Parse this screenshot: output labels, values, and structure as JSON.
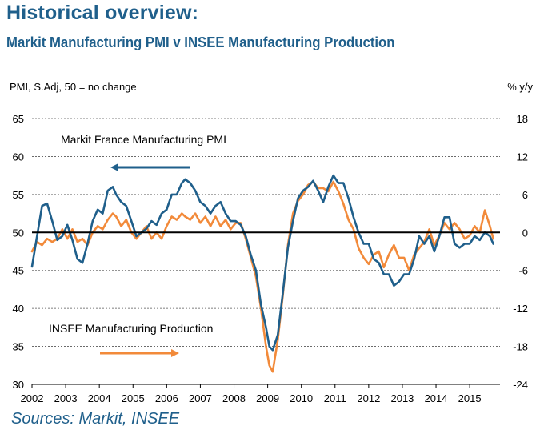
{
  "header": {
    "title": "Historical overview:",
    "subtitle": "Markit Manufacturing PMI v INSEE Manufacturing Production"
  },
  "footer": {
    "source": "Sources: Markit, INSEE"
  },
  "colors": {
    "pmi": "#1f5f8b",
    "insee": "#f28a3a",
    "title": "#1f5f8b",
    "grid": "#555555",
    "axis": "#000000"
  },
  "chart_data": {
    "type": "line",
    "left_axis_label": "PMI, S.Adj, 50 = no change",
    "right_axis_label": "% y/y",
    "left_ylim": [
      30,
      65
    ],
    "left_ticks": [
      "30",
      "35",
      "40",
      "45",
      "50",
      "55",
      "60",
      "65"
    ],
    "right_ylim": [
      -24,
      18
    ],
    "right_ticks": [
      "-24",
      "-18",
      "-12",
      "-6",
      "0",
      "6",
      "12",
      "18"
    ],
    "xlim": [
      2002.0,
      2015.9
    ],
    "x_ticks": [
      "2002",
      "2003",
      "2004",
      "2005",
      "2006",
      "2007",
      "2008",
      "2009",
      "2010",
      "2011",
      "2012",
      "2013",
      "2014",
      "2015"
    ],
    "grid": "horizontal dashed",
    "reference_line": 50,
    "series": [
      {
        "name": "Markit France Manufacturing PMI",
        "axis": "left",
        "x": [
          2002.0,
          2002.15,
          2002.3,
          2002.45,
          2002.6,
          2002.75,
          2002.9,
          2003.05,
          2003.2,
          2003.35,
          2003.5,
          2003.65,
          2003.8,
          2003.95,
          2004.1,
          2004.25,
          2004.4,
          2004.5,
          2004.65,
          2004.8,
          2004.95,
          2005.1,
          2005.25,
          2005.4,
          2005.55,
          2005.7,
          2005.85,
          2006.0,
          2006.15,
          2006.3,
          2006.45,
          2006.55,
          2006.7,
          2006.85,
          2007.0,
          2007.15,
          2007.3,
          2007.45,
          2007.6,
          2007.75,
          2007.9,
          2008.05,
          2008.2,
          2008.35,
          2008.5,
          2008.65,
          2008.8,
          2008.95,
          2009.05,
          2009.15,
          2009.3,
          2009.45,
          2009.6,
          2009.75,
          2009.9,
          2010.05,
          2010.2,
          2010.35,
          2010.5,
          2010.65,
          2010.8,
          2010.95,
          2011.1,
          2011.25,
          2011.4,
          2011.55,
          2011.7,
          2011.85,
          2012.0,
          2012.15,
          2012.3,
          2012.45,
          2012.6,
          2012.75,
          2012.9,
          2013.05,
          2013.2,
          2013.35,
          2013.5,
          2013.65,
          2013.8,
          2013.95,
          2014.1,
          2014.25,
          2014.4,
          2014.55,
          2014.7,
          2014.85,
          2015.0,
          2015.15,
          2015.3,
          2015.45,
          2015.6,
          2015.7
        ],
        "values": [
          45.5,
          49.5,
          53.5,
          53.8,
          51.5,
          49,
          49.5,
          51,
          49,
          46.5,
          46,
          48.5,
          51.5,
          53,
          52.5,
          55.5,
          56,
          55,
          54,
          53.5,
          51.5,
          49.5,
          50,
          50.5,
          51.5,
          51,
          52.5,
          53,
          55,
          55,
          56.5,
          57,
          56.5,
          55.5,
          54,
          53.5,
          52.5,
          53.5,
          54,
          52.5,
          51.5,
          51.5,
          51,
          49.5,
          47,
          45,
          40.5,
          37.5,
          35,
          34.5,
          36.5,
          42,
          48,
          51.5,
          54.5,
          55.5,
          56,
          56.8,
          55.5,
          54,
          56,
          57.5,
          56.5,
          56.5,
          54.5,
          52,
          50,
          48.5,
          48.5,
          46.5,
          46,
          44.5,
          44.5,
          43,
          43.5,
          44.5,
          44.5,
          46.5,
          49.5,
          48.5,
          49.5,
          47.5,
          49.5,
          52,
          52,
          48.5,
          48,
          48.5,
          48.5,
          49.5,
          49,
          50,
          49.5,
          48.5
        ]
      },
      {
        "name": "INSEE Manufacturing Production",
        "axis": "right",
        "x": [
          2002.0,
          2002.15,
          2002.3,
          2002.45,
          2002.6,
          2002.75,
          2002.9,
          2003.05,
          2003.2,
          2003.35,
          2003.5,
          2003.65,
          2003.8,
          2003.95,
          2004.1,
          2004.25,
          2004.4,
          2004.5,
          2004.65,
          2004.8,
          2004.95,
          2005.1,
          2005.25,
          2005.4,
          2005.55,
          2005.7,
          2005.85,
          2006.0,
          2006.15,
          2006.3,
          2006.45,
          2006.55,
          2006.7,
          2006.85,
          2007.0,
          2007.15,
          2007.3,
          2007.45,
          2007.6,
          2007.75,
          2007.9,
          2008.05,
          2008.2,
          2008.35,
          2008.5,
          2008.65,
          2008.8,
          2008.95,
          2009.05,
          2009.15,
          2009.3,
          2009.45,
          2009.6,
          2009.75,
          2009.9,
          2010.05,
          2010.2,
          2010.35,
          2010.5,
          2010.65,
          2010.8,
          2010.95,
          2011.1,
          2011.25,
          2011.4,
          2011.55,
          2011.7,
          2011.85,
          2012.0,
          2012.15,
          2012.3,
          2012.45,
          2012.6,
          2012.75,
          2012.9,
          2013.05,
          2013.2,
          2013.35,
          2013.5,
          2013.65,
          2013.8,
          2013.95,
          2014.1,
          2014.25,
          2014.4,
          2014.55,
          2014.7,
          2014.85,
          2015.0,
          2015.15,
          2015.3,
          2015.45,
          2015.6,
          2015.7
        ],
        "values": [
          -3,
          -1.5,
          -2,
          -1,
          -1.5,
          -1,
          0.5,
          -1,
          0.5,
          -1.5,
          -1,
          -2,
          0,
          1,
          0.5,
          2,
          3,
          2.5,
          1,
          2,
          0,
          -1,
          0,
          1,
          -1,
          0,
          -1,
          1,
          2.5,
          2,
          3,
          2.5,
          2,
          3,
          1.5,
          2.5,
          1,
          2.5,
          1,
          2,
          0.5,
          1.5,
          1.5,
          -1,
          -4,
          -7,
          -12,
          -18,
          -21,
          -22,
          -17,
          -10,
          -2,
          3,
          5,
          6,
          7.5,
          8,
          7,
          7,
          6.5,
          8,
          6.5,
          4.5,
          2,
          0.5,
          -2.5,
          -4,
          -5,
          -3.5,
          -3,
          -5.5,
          -3.5,
          -2,
          -4,
          -4,
          -6,
          -3.5,
          -2.5,
          -1.5,
          0.5,
          -2,
          -0.5,
          1.5,
          0.5,
          1.5,
          0.5,
          -1,
          -0.5,
          1,
          0,
          3.5,
          1,
          -1
        ]
      }
    ],
    "annotations": [
      "Markit France Manufacturing PMI",
      "INSEE Manufacturing Production"
    ]
  }
}
